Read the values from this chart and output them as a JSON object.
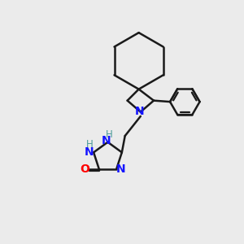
{
  "bg_color": "#ebebeb",
  "bond_color": "#1a1a1a",
  "N_color": "#1414ff",
  "O_color": "#ff0000",
  "H_color": "#4a9a9a",
  "line_width": 1.8,
  "figsize": [
    3.0,
    3.0
  ],
  "dpi": 100,
  "xlim": [
    0,
    10
  ],
  "ylim": [
    0,
    10
  ]
}
